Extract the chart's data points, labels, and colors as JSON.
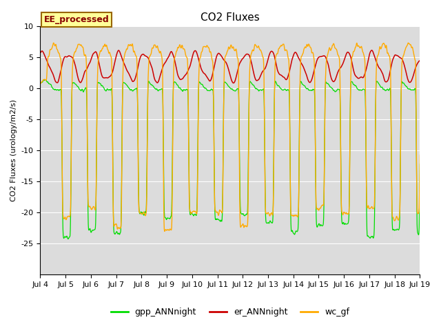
{
  "title": "CO2 Fluxes",
  "ylabel": "CO2 Fluxes (urology/m2/s)",
  "ylim": [
    -30,
    10
  ],
  "yticks": [
    -25,
    -20,
    -15,
    -10,
    -5,
    0,
    5,
    10
  ],
  "background_color": "#dcdcdc",
  "figure_facecolor": "#ffffff",
  "legend_labels": [
    "gpp_ANNnight",
    "er_ANNnight",
    "wc_gf"
  ],
  "legend_colors": [
    "#00dd00",
    "#cc0000",
    "#ffaa00"
  ],
  "annotation_text": "EE_processed",
  "annotation_facecolor": "#ffff99",
  "annotation_edgecolor": "#996600",
  "annotation_textcolor": "#880000",
  "n_days": 15,
  "points_per_day": 96,
  "start_day": 4,
  "title_fontsize": 11,
  "seed": 12345
}
